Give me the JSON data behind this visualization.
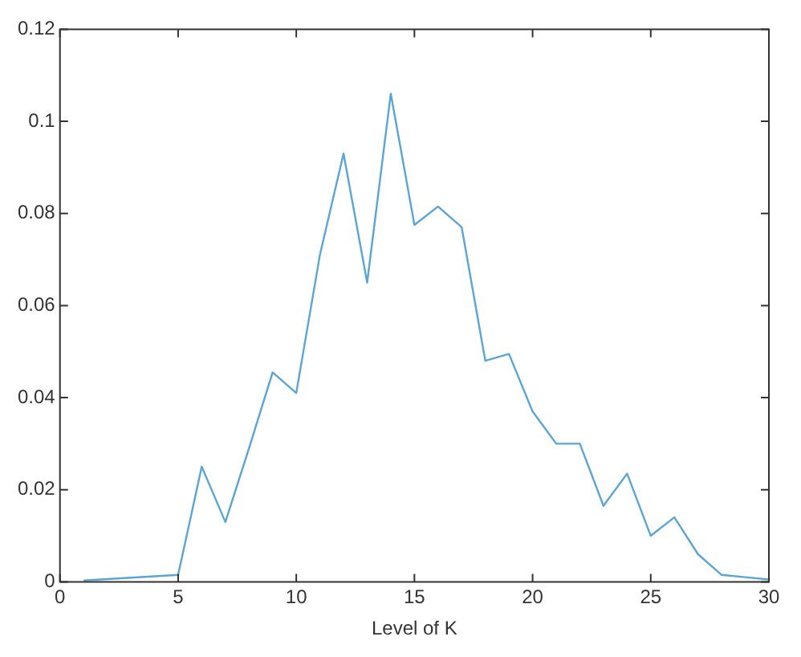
{
  "chart_data": {
    "type": "line",
    "xlabel": "Level of K",
    "x": [
      1,
      2,
      3,
      4,
      5,
      6,
      7,
      8,
      9,
      10,
      11,
      12,
      13,
      14,
      15,
      16,
      17,
      18,
      19,
      20,
      21,
      22,
      23,
      24,
      25,
      26,
      27,
      28,
      29,
      30
    ],
    "series": [
      {
        "color": "#5aa5d8",
        "values": [
          0.0003,
          0.0006,
          0.0009,
          0.0012,
          0.0015,
          0.025,
          0.013,
          0.029,
          0.0455,
          0.041,
          0.071,
          0.093,
          0.065,
          0.106,
          0.0775,
          0.0815,
          0.077,
          0.048,
          0.0495,
          0.037,
          0.03,
          0.03,
          0.0165,
          0.0235,
          0.01,
          0.014,
          0.006,
          0.0015,
          0.001,
          0.0005
        ]
      }
    ],
    "xlim": [
      0,
      30
    ],
    "xticks": [
      0,
      5,
      10,
      15,
      20,
      25,
      30
    ],
    "ylim": [
      0,
      0.12
    ],
    "yticks": [
      0,
      0.02,
      0.04,
      0.06,
      0.08,
      0.1,
      0.12
    ],
    "grid": false,
    "legend": false,
    "marker": "none",
    "line_style": "solid"
  }
}
